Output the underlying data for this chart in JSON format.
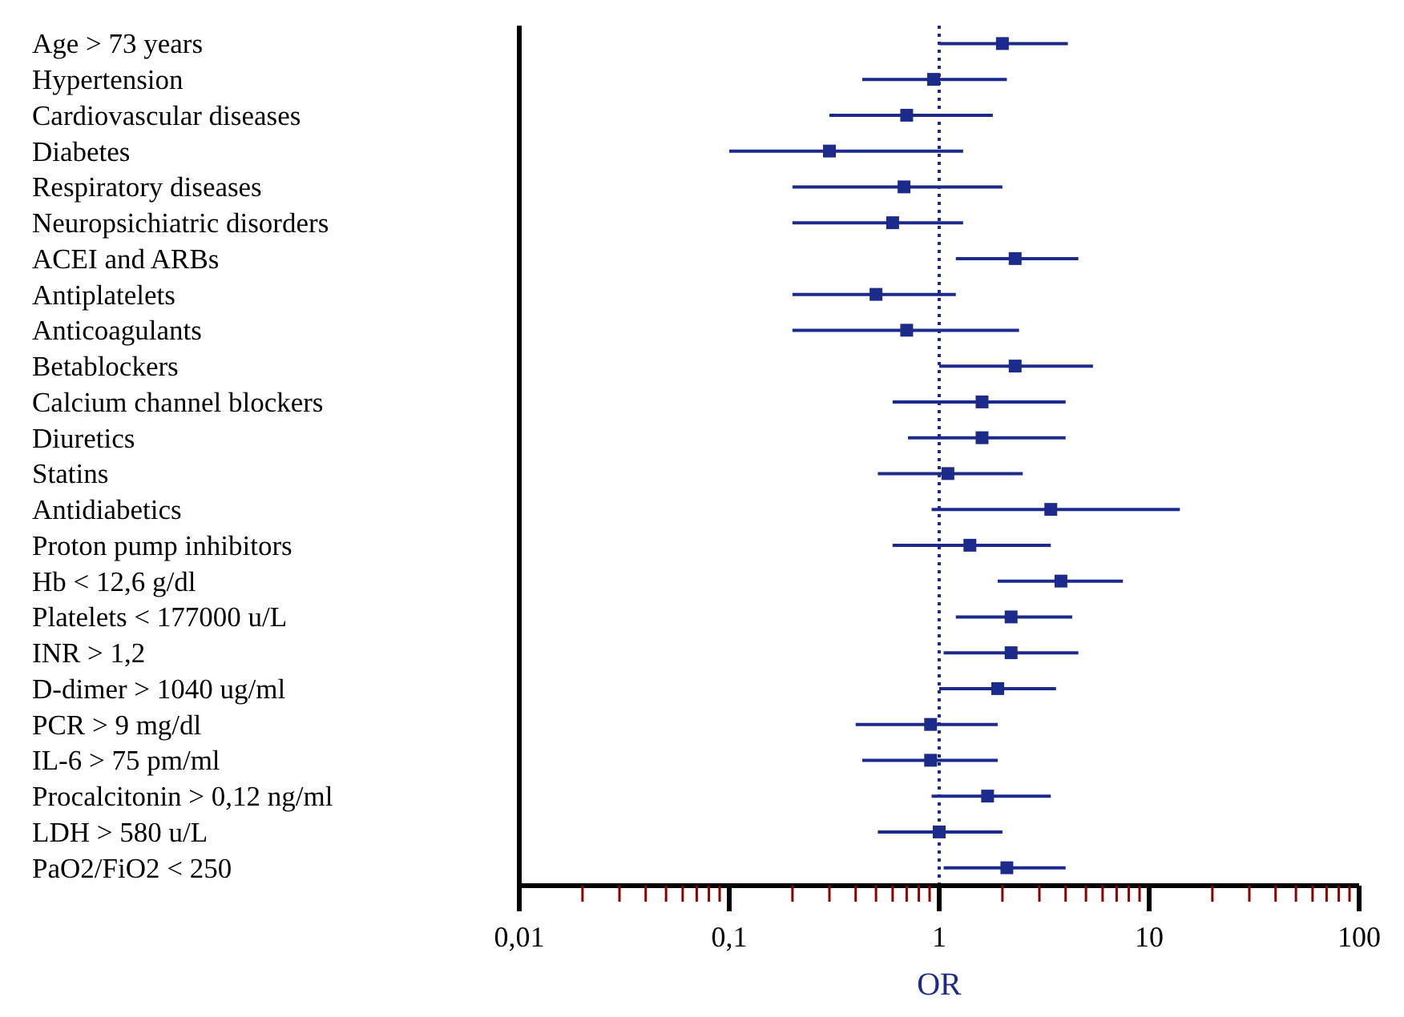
{
  "chart_data": {
    "type": "scatter",
    "orientation": "horizontal",
    "xlabel": "OR",
    "categories": [
      "Age > 73 years",
      "Hypertension",
      "Cardiovascular diseases",
      "Diabetes",
      "Respiratory diseases",
      "Neuropsichiatric disorders",
      "ACEI and ARBs",
      "Antiplatelets",
      "Anticoagulants",
      "Betablockers",
      "Calcium channel blockers",
      "Diuretics",
      "Statins",
      "Antidiabetics",
      "Proton pump inhibitors",
      "Hb < 12,6 g/dl",
      "Platelets < 177000 u/L",
      "INR > 1,2",
      "D-dimer > 1040 ug/ml",
      "PCR > 9 mg/dl",
      "IL-6 > 75 pm/ml",
      "Procalcitonin > 0,12 ng/ml",
      "LDH > 580 u/L",
      "PaO2/FiO2 < 250"
    ],
    "color": "#1c2a8c",
    "values": [
      2.0,
      0.94,
      0.7,
      0.3,
      0.68,
      0.6,
      2.3,
      0.5,
      0.7,
      2.3,
      1.6,
      1.6,
      1.1,
      3.4,
      1.4,
      3.8,
      2.2,
      2.2,
      1.9,
      0.91,
      0.91,
      1.7,
      1.0,
      2.1
    ],
    "errors": [
      [
        1.0,
        4.1
      ],
      [
        0.43,
        2.1
      ],
      [
        0.3,
        1.8
      ],
      [
        0.1,
        1.3
      ],
      [
        0.2,
        2.0
      ],
      [
        0.2,
        1.3
      ],
      [
        1.2,
        4.6
      ],
      [
        0.2,
        1.2
      ],
      [
        0.2,
        2.4
      ],
      [
        1.0,
        5.4
      ],
      [
        0.6,
        4.0
      ],
      [
        0.71,
        4.0
      ],
      [
        0.51,
        2.5
      ],
      [
        0.92,
        14
      ],
      [
        0.6,
        3.4
      ],
      [
        1.9,
        7.5
      ],
      [
        1.2,
        4.3
      ],
      [
        1.05,
        4.6
      ],
      [
        1.0,
        3.6
      ],
      [
        0.4,
        1.9
      ],
      [
        0.43,
        1.9
      ],
      [
        0.92,
        3.4
      ],
      [
        0.51,
        2.0
      ],
      [
        1.05,
        4.0
      ]
    ],
    "log": "x",
    "marker": "square",
    "xlim": [
      0.01,
      100
    ],
    "xticks": [
      {
        "value": 0.01,
        "label": "0,01"
      },
      {
        "value": 0.02,
        "label": null
      },
      {
        "value": 0.03,
        "label": null
      },
      {
        "value": 0.04,
        "label": null
      },
      {
        "value": 0.05,
        "label": null
      },
      {
        "value": 0.06,
        "label": null
      },
      {
        "value": 0.07,
        "label": null
      },
      {
        "value": 0.08,
        "label": null
      },
      {
        "value": 0.09,
        "label": null
      },
      {
        "value": 0.1,
        "label": "0,1"
      },
      {
        "value": 0.2,
        "label": null
      },
      {
        "value": 0.3,
        "label": null
      },
      {
        "value": 0.4,
        "label": null
      },
      {
        "value": 0.5,
        "label": null
      },
      {
        "value": 0.6,
        "label": null
      },
      {
        "value": 0.7,
        "label": null
      },
      {
        "value": 0.8,
        "label": null
      },
      {
        "value": 0.9,
        "label": null
      },
      1,
      {
        "value": 2,
        "label": null
      },
      {
        "value": 3,
        "label": null
      },
      {
        "value": 4,
        "label": null
      },
      {
        "value": 5,
        "label": null
      },
      {
        "value": 6,
        "label": null
      },
      {
        "value": 7,
        "label": null
      },
      {
        "value": 8,
        "label": null
      },
      {
        "value": 9,
        "label": null
      },
      10,
      {
        "value": 20,
        "label": null
      },
      {
        "value": 30,
        "label": null
      },
      {
        "value": 40,
        "label": null
      },
      {
        "value": 50,
        "label": null
      },
      {
        "value": 60,
        "label": null
      },
      {
        "value": 70,
        "label": null
      },
      {
        "value": 80,
        "label": null
      },
      {
        "value": 90,
        "label": null
      },
      100
    ],
    "ref_lines": [
      {
        "axis": "x",
        "value": 1,
        "color": "#1c2a8c",
        "line_style": "dotted"
      }
    ]
  }
}
